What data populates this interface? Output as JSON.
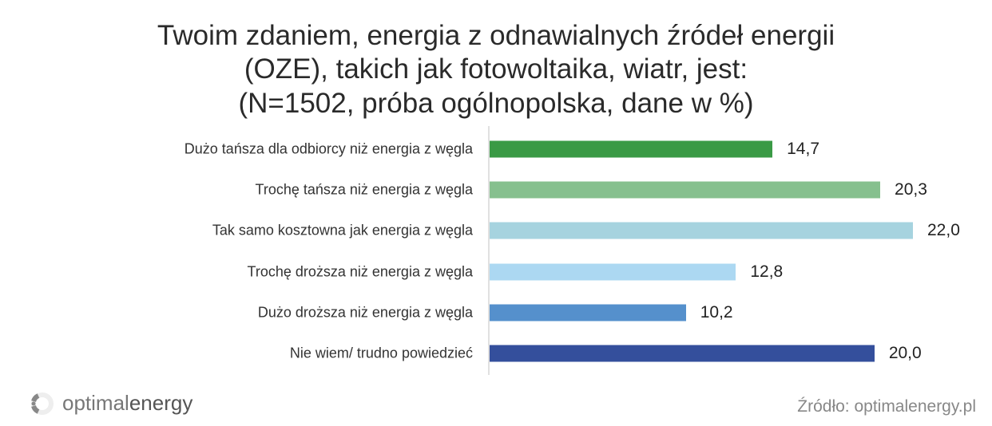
{
  "chart_data": {
    "type": "bar",
    "orientation": "horizontal",
    "title": [
      "Twoim zdaniem, energia z odnawialnych źródeł energii",
      "(OZE), takich jak fotowoltaika, wiatr, jest:",
      "(N=1502, próba ogólnopolska, dane w %)"
    ],
    "categories": [
      "Dużo tańsza dla odbiorcy niż energia z węgla",
      "Trochę tańsza niż energia z węgla",
      "Tak samo kosztowna jak energia z węgla",
      "Trochę droższa niż energia z węgla",
      "Dużo droższa niż energia z węgla",
      "Nie wiem/ trudno powiedzieć"
    ],
    "values": [
      14.7,
      20.3,
      22.0,
      12.8,
      10.2,
      20.0
    ],
    "value_labels": [
      "14,7",
      "20,3",
      "22,0",
      "12,8",
      "10,2",
      "20,0"
    ],
    "colors": [
      "#3a9a45",
      "#86c08e",
      "#a6d3df",
      "#acd8f2",
      "#5590cc",
      "#344f9c"
    ],
    "xlim": [
      0,
      22
    ],
    "xlabel": "",
    "ylabel": "",
    "grid": false
  },
  "footer": {
    "logo_light": "optimal",
    "logo_bold": "energy",
    "source": "Źródło: optimalenergy.pl"
  }
}
